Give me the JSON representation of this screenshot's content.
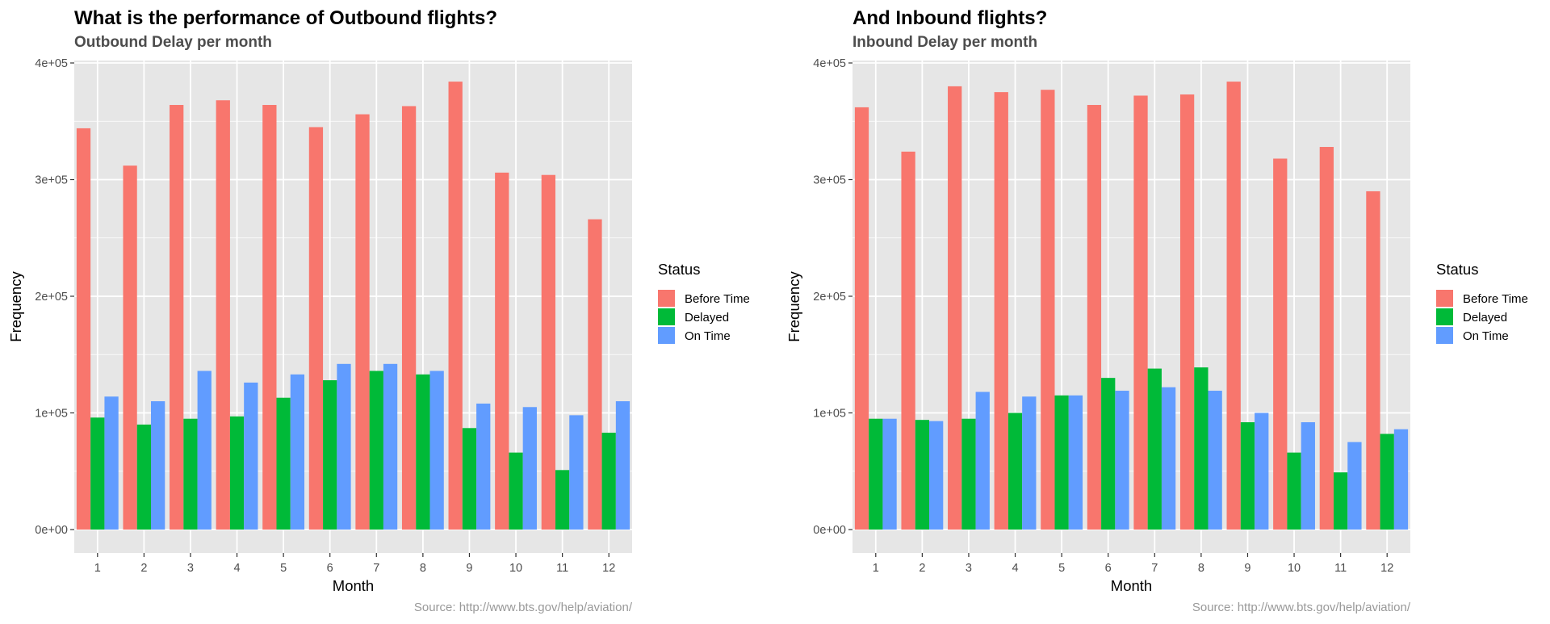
{
  "colors": {
    "panel_bg": "#e6e6e6",
    "grid": "#ffffff",
    "axis_text": "#4d4d4d",
    "caption": "#999999"
  },
  "chart_data": [
    {
      "type": "bar",
      "title": "What is the performance of Outbound flights?",
      "subtitle": "Outbound Delay per month",
      "xlabel": "Month",
      "ylabel": "Frequency",
      "caption": "Source: http://www.bts.gov/help/aviation/",
      "ylim": [
        0,
        400000
      ],
      "yticks": [
        0,
        100000,
        200000,
        300000,
        400000
      ],
      "ytick_labels": [
        "0e+00",
        "1e+05",
        "2e+05",
        "3e+05",
        "4e+05"
      ],
      "categories": [
        "1",
        "2",
        "3",
        "4",
        "5",
        "6",
        "7",
        "8",
        "9",
        "10",
        "11",
        "12"
      ],
      "grid": true,
      "legend": {
        "title": "Status",
        "position": "right"
      },
      "series": [
        {
          "name": "Before Time",
          "color": "#F8766D",
          "values": [
            344000,
            312000,
            364000,
            368000,
            364000,
            345000,
            356000,
            363000,
            384000,
            306000,
            304000,
            266000
          ]
        },
        {
          "name": "Delayed",
          "color": "#00BA38",
          "values": [
            96000,
            90000,
            95000,
            97000,
            113000,
            128000,
            136000,
            133000,
            87000,
            66000,
            51000,
            83000
          ]
        },
        {
          "name": "On Time",
          "color": "#619CFF",
          "values": [
            114000,
            110000,
            136000,
            126000,
            133000,
            142000,
            142000,
            136000,
            108000,
            105000,
            98000,
            110000
          ]
        }
      ]
    },
    {
      "type": "bar",
      "title": "And Inbound flights?",
      "subtitle": "Inbound Delay per month",
      "xlabel": "Month",
      "ylabel": "Frequency",
      "caption": "Source: http://www.bts.gov/help/aviation/",
      "ylim": [
        0,
        400000
      ],
      "yticks": [
        0,
        100000,
        200000,
        300000,
        400000
      ],
      "ytick_labels": [
        "0e+00",
        "1e+05",
        "2e+05",
        "3e+05",
        "4e+05"
      ],
      "categories": [
        "1",
        "2",
        "3",
        "4",
        "5",
        "6",
        "7",
        "8",
        "9",
        "10",
        "11",
        "12"
      ],
      "grid": true,
      "legend": {
        "title": "Status",
        "position": "right"
      },
      "series": [
        {
          "name": "Before Time",
          "color": "#F8766D",
          "values": [
            362000,
            324000,
            380000,
            375000,
            377000,
            364000,
            372000,
            373000,
            384000,
            318000,
            328000,
            290000
          ]
        },
        {
          "name": "Delayed",
          "color": "#00BA38",
          "values": [
            95000,
            94000,
            95000,
            100000,
            115000,
            130000,
            138000,
            139000,
            92000,
            66000,
            49000,
            82000
          ]
        },
        {
          "name": "On Time",
          "color": "#619CFF",
          "values": [
            95000,
            93000,
            118000,
            114000,
            115000,
            119000,
            122000,
            119000,
            100000,
            92000,
            75000,
            86000
          ]
        }
      ]
    }
  ]
}
